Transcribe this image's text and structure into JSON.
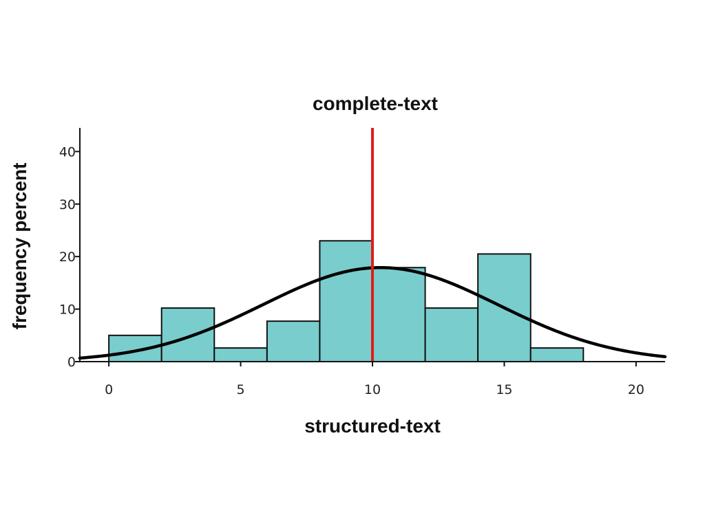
{
  "chart_data": {
    "type": "bar",
    "title": "complete-text",
    "xlabel": "structured-text",
    "ylabel": "frequency percent",
    "xlim": [
      -1.1,
      21.1
    ],
    "ylim": [
      0,
      44.5
    ],
    "x_ticks": [
      0,
      5,
      10,
      15,
      20
    ],
    "y_ticks": [
      0,
      10,
      20,
      30,
      40
    ],
    "bin_width": 2,
    "bins": [
      {
        "start": 0,
        "end": 2,
        "value": 5
      },
      {
        "start": 2,
        "end": 4,
        "value": 10.2
      },
      {
        "start": 4,
        "end": 6,
        "value": 2.6
      },
      {
        "start": 6,
        "end": 8,
        "value": 7.7
      },
      {
        "start": 8,
        "end": 10,
        "value": 23
      },
      {
        "start": 10,
        "end": 12,
        "value": 17.9
      },
      {
        "start": 12,
        "end": 14,
        "value": 10.2
      },
      {
        "start": 14,
        "end": 16,
        "value": 20.5
      },
      {
        "start": 16,
        "end": 18,
        "value": 2.6
      }
    ],
    "normal_curve": {
      "mean": 10.3,
      "sd": 4.45,
      "peak": 17.9
    },
    "reference_line": {
      "x": 10,
      "color": "#e11b1b"
    },
    "bar_color": "#79cdcd",
    "grid": false,
    "legend": "none"
  }
}
